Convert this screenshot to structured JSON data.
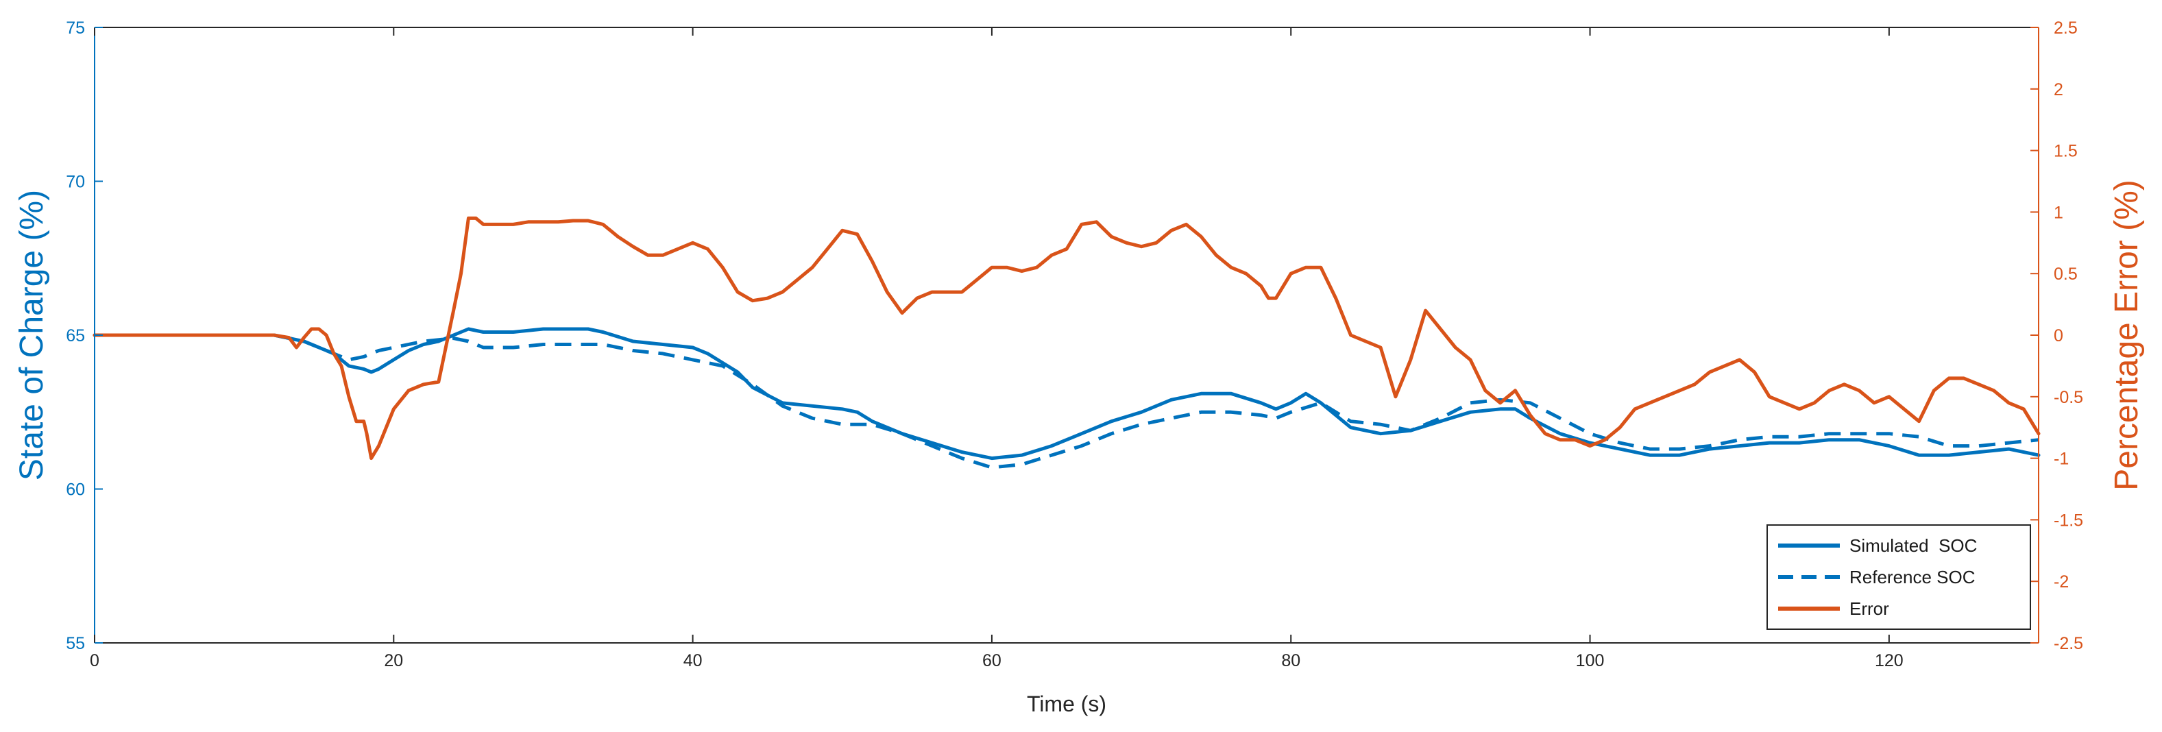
{
  "chart_data": {
    "type": "line",
    "title": "",
    "xlabel": "Time (s)",
    "ylabel_left": "State of Charge (%)",
    "ylabel_right": "Percentage Error (%)",
    "xlim": [
      0,
      130
    ],
    "ylim_left": [
      55,
      75
    ],
    "ylim_right": [
      -2.5,
      2.5
    ],
    "grid": false,
    "legend_position": "bottom-right",
    "x_ticks": [
      "0",
      "20",
      "40",
      "60",
      "80",
      "100",
      "120"
    ],
    "y_left_ticks": [
      "55",
      "60",
      "65",
      "70",
      "75"
    ],
    "y_right_ticks": [
      "-2.5",
      "-2",
      "-1.5",
      "-1",
      "-0.5",
      "0",
      "0.5",
      "1",
      "1.5",
      "2",
      "2.5"
    ],
    "colors": {
      "soc": "#0072BD",
      "error": "#D95319",
      "axis": "#262626"
    },
    "series": [
      {
        "name": "Simulated  SOC",
        "axis": "left",
        "style": "solid",
        "x": [
          0,
          12,
          14,
          16,
          17,
          18,
          18.5,
          19,
          20,
          21,
          22,
          23,
          24,
          25,
          26,
          28,
          30,
          32,
          33,
          34,
          36,
          38,
          40,
          41,
          42,
          43,
          44,
          46,
          48,
          50,
          51,
          52,
          53,
          54,
          56,
          58,
          60,
          62,
          64,
          66,
          68,
          70,
          72,
          74,
          76,
          78,
          79,
          80,
          81,
          82,
          84,
          86,
          88,
          90,
          92,
          94,
          95,
          96,
          98,
          100,
          102,
          104,
          106,
          108,
          110,
          112,
          114,
          116,
          118,
          120,
          122,
          124,
          126,
          128,
          130
        ],
        "values": [
          65,
          65,
          64.8,
          64.4,
          64,
          63.9,
          63.8,
          63.9,
          64.2,
          64.5,
          64.7,
          64.8,
          65,
          65.2,
          65.1,
          65.1,
          65.2,
          65.2,
          65.2,
          65.1,
          64.8,
          64.7,
          64.6,
          64.4,
          64.1,
          63.8,
          63.3,
          62.8,
          62.7,
          62.6,
          62.5,
          62.2,
          62,
          61.8,
          61.5,
          61.2,
          61,
          61.1,
          61.4,
          61.8,
          62.2,
          62.5,
          62.9,
          63.1,
          63.1,
          62.8,
          62.6,
          62.8,
          63.1,
          62.8,
          62,
          61.8,
          61.9,
          62.2,
          62.5,
          62.6,
          62.6,
          62.3,
          61.8,
          61.5,
          61.3,
          61.1,
          61.1,
          61.3,
          61.4,
          61.5,
          61.5,
          61.6,
          61.6,
          61.4,
          61.1,
          61.1,
          61.2,
          61.3,
          61.1
        ]
      },
      {
        "name": "Reference SOC",
        "axis": "left",
        "style": "dashed",
        "x": [
          0,
          12,
          14,
          16,
          17,
          18,
          19,
          20,
          22,
          24,
          25,
          26,
          28,
          30,
          32,
          34,
          36,
          38,
          40,
          42,
          44,
          46,
          48,
          50,
          52,
          54,
          56,
          58,
          60,
          62,
          64,
          66,
          68,
          70,
          72,
          74,
          76,
          78,
          79,
          80,
          82,
          83,
          84,
          86,
          88,
          90,
          92,
          94,
          96,
          98,
          100,
          102,
          104,
          106,
          108,
          110,
          112,
          114,
          116,
          118,
          120,
          122,
          124,
          126,
          128,
          130
        ],
        "values": [
          65,
          65,
          64.8,
          64.4,
          64.2,
          64.3,
          64.5,
          64.6,
          64.8,
          64.9,
          64.8,
          64.6,
          64.6,
          64.7,
          64.7,
          64.7,
          64.5,
          64.4,
          64.2,
          64,
          63.4,
          62.7,
          62.3,
          62.1,
          62.1,
          61.8,
          61.4,
          61,
          60.7,
          60.8,
          61.1,
          61.4,
          61.8,
          62.1,
          62.3,
          62.5,
          62.5,
          62.4,
          62.3,
          62.5,
          62.8,
          62.5,
          62.2,
          62.1,
          61.9,
          62.3,
          62.8,
          62.9,
          62.8,
          62.3,
          61.8,
          61.5,
          61.3,
          61.3,
          61.4,
          61.6,
          61.7,
          61.7,
          61.8,
          61.8,
          61.8,
          61.7,
          61.4,
          61.4,
          61.5,
          61.6
        ]
      },
      {
        "name": "Error",
        "axis": "right",
        "style": "solid",
        "x": [
          0,
          12,
          13,
          13.5,
          14,
          14.5,
          15,
          15.5,
          16,
          16.5,
          17,
          17.5,
          18,
          18.2,
          18.5,
          19,
          20,
          21,
          22,
          23,
          24,
          24.5,
          25,
          25.5,
          26,
          27,
          28,
          29,
          30,
          31,
          32,
          33,
          34,
          35,
          36,
          37,
          38,
          39,
          40,
          41,
          42,
          43,
          44,
          45,
          46,
          47,
          48,
          49,
          50,
          51,
          52,
          53,
          54,
          55,
          56,
          57,
          58,
          59,
          60,
          61,
          62,
          63,
          64,
          65,
          66,
          67,
          68,
          69,
          70,
          71,
          72,
          73,
          74,
          75,
          76,
          77,
          78,
          78.5,
          79,
          80,
          81,
          82,
          83,
          84,
          85,
          86,
          87,
          88,
          89,
          90,
          91,
          92,
          93,
          94,
          95,
          96,
          97,
          98,
          99,
          100,
          101,
          102,
          103,
          104,
          105,
          106,
          107,
          108,
          109,
          110,
          111,
          112,
          113,
          114,
          115,
          116,
          117,
          118,
          119,
          120,
          121,
          122,
          123,
          124,
          125,
          126,
          127,
          128,
          129,
          130
        ],
        "values": [
          0,
          0,
          -0.02,
          -0.1,
          -0.02,
          0.05,
          0.05,
          0,
          -0.15,
          -0.25,
          -0.5,
          -0.7,
          -0.7,
          -0.8,
          -1,
          -0.9,
          -0.6,
          -0.45,
          -0.4,
          -0.38,
          0.2,
          0.5,
          0.95,
          0.95,
          0.9,
          0.9,
          0.9,
          0.92,
          0.92,
          0.92,
          0.93,
          0.93,
          0.9,
          0.8,
          0.72,
          0.65,
          0.65,
          0.7,
          0.75,
          0.7,
          0.55,
          0.35,
          0.28,
          0.3,
          0.35,
          0.45,
          0.55,
          0.7,
          0.85,
          0.82,
          0.6,
          0.35,
          0.18,
          0.3,
          0.35,
          0.35,
          0.35,
          0.45,
          0.55,
          0.55,
          0.52,
          0.55,
          0.65,
          0.7,
          0.9,
          0.92,
          0.8,
          0.75,
          0.72,
          0.75,
          0.85,
          0.9,
          0.8,
          0.65,
          0.55,
          0.5,
          0.4,
          0.3,
          0.3,
          0.5,
          0.55,
          0.55,
          0.3,
          0.0,
          -0.05,
          -0.1,
          -0.5,
          -0.2,
          0.2,
          0.05,
          -0.1,
          -0.2,
          -0.45,
          -0.55,
          -0.45,
          -0.65,
          -0.8,
          -0.85,
          -0.85,
          -0.9,
          -0.85,
          -0.75,
          -0.6,
          -0.55,
          -0.5,
          -0.45,
          -0.4,
          -0.3,
          -0.25,
          -0.2,
          -0.3,
          -0.5,
          -0.55,
          -0.6,
          -0.55,
          -0.45,
          -0.4,
          -0.45,
          -0.55,
          -0.5,
          -0.6,
          -0.7,
          -0.45,
          -0.35,
          -0.35,
          -0.4,
          -0.45,
          -0.55,
          -0.6,
          -0.8
        ]
      }
    ]
  }
}
